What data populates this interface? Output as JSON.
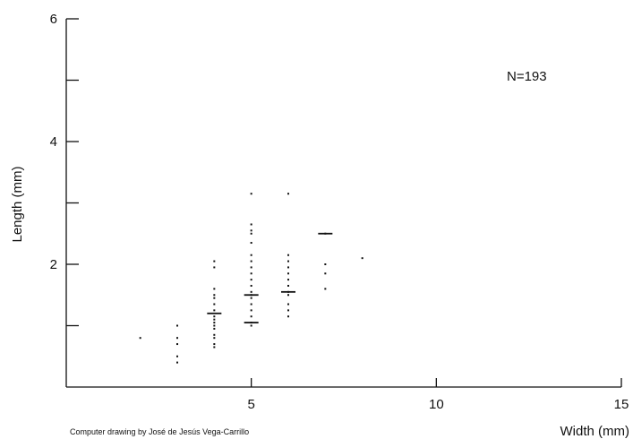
{
  "chart_data": {
    "type": "scatter",
    "title": "",
    "xlabel": "Width (mm)",
    "ylabel": "Length (mm)",
    "xlim": [
      0,
      15
    ],
    "ylim": [
      0,
      6
    ],
    "x_ticks": [
      5,
      10,
      15
    ],
    "y_ticks": [
      2,
      4,
      6
    ],
    "y_minor_ticks": [
      1,
      3,
      5
    ],
    "grid": false,
    "annotation": "N=193",
    "credit": "Computer drawing by José de Jesús Vega-Carrillo",
    "points": [
      {
        "x": 2,
        "y": 0.8
      },
      {
        "x": 3,
        "y": 1.0
      },
      {
        "x": 3,
        "y": 0.8
      },
      {
        "x": 3,
        "y": 0.7
      },
      {
        "x": 3,
        "y": 0.5
      },
      {
        "x": 3,
        "y": 0.4
      },
      {
        "x": 4,
        "y": 2.05
      },
      {
        "x": 4,
        "y": 1.95
      },
      {
        "x": 4,
        "y": 1.6
      },
      {
        "x": 4,
        "y": 1.5
      },
      {
        "x": 4,
        "y": 1.45
      },
      {
        "x": 4,
        "y": 1.35
      },
      {
        "x": 4,
        "y": 1.25
      },
      {
        "x": 4,
        "y": 1.15
      },
      {
        "x": 4,
        "y": 1.1
      },
      {
        "x": 4,
        "y": 1.05
      },
      {
        "x": 4,
        "y": 1.0
      },
      {
        "x": 4,
        "y": 0.95
      },
      {
        "x": 4,
        "y": 0.85
      },
      {
        "x": 4,
        "y": 0.8
      },
      {
        "x": 4,
        "y": 0.7
      },
      {
        "x": 4,
        "y": 0.65
      },
      {
        "x": 5,
        "y": 3.15
      },
      {
        "x": 5,
        "y": 2.65
      },
      {
        "x": 5,
        "y": 2.55
      },
      {
        "x": 5,
        "y": 2.5
      },
      {
        "x": 5,
        "y": 2.35
      },
      {
        "x": 5,
        "y": 2.15
      },
      {
        "x": 5,
        "y": 2.05
      },
      {
        "x": 5,
        "y": 1.95
      },
      {
        "x": 5,
        "y": 1.85
      },
      {
        "x": 5,
        "y": 1.75
      },
      {
        "x": 5,
        "y": 1.65
      },
      {
        "x": 5,
        "y": 1.55
      },
      {
        "x": 5,
        "y": 1.5
      },
      {
        "x": 5,
        "y": 1.45
      },
      {
        "x": 5,
        "y": 1.35
      },
      {
        "x": 5,
        "y": 1.25
      },
      {
        "x": 5,
        "y": 1.15
      },
      {
        "x": 5,
        "y": 1.05
      },
      {
        "x": 5,
        "y": 1.0
      },
      {
        "x": 6,
        "y": 3.15
      },
      {
        "x": 6,
        "y": 2.15
      },
      {
        "x": 6,
        "y": 2.05
      },
      {
        "x": 6,
        "y": 1.95
      },
      {
        "x": 6,
        "y": 1.85
      },
      {
        "x": 6,
        "y": 1.75
      },
      {
        "x": 6,
        "y": 1.65
      },
      {
        "x": 6,
        "y": 1.55
      },
      {
        "x": 6,
        "y": 1.5
      },
      {
        "x": 6,
        "y": 1.35
      },
      {
        "x": 6,
        "y": 1.25
      },
      {
        "x": 6,
        "y": 1.15
      },
      {
        "x": 7,
        "y": 2.5
      },
      {
        "x": 7,
        "y": 2.0
      },
      {
        "x": 7,
        "y": 1.85
      },
      {
        "x": 7,
        "y": 1.6
      },
      {
        "x": 8,
        "y": 2.1
      }
    ],
    "bold_dashes": [
      {
        "x": 4,
        "y": 1.2
      },
      {
        "x": 5,
        "y": 1.5
      },
      {
        "x": 5,
        "y": 1.05
      },
      {
        "x": 6,
        "y": 1.55
      },
      {
        "x": 7,
        "y": 2.5
      }
    ]
  }
}
